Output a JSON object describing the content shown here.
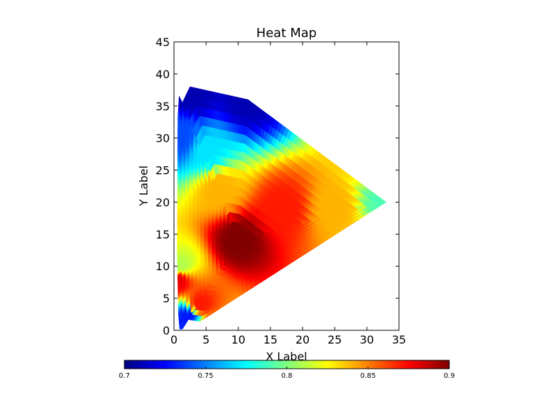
{
  "chart_data": {
    "type": "heatmap",
    "title": "Heat Map",
    "xlabel": "X Label",
    "ylabel": "Y Label",
    "xlim": [
      0,
      35
    ],
    "ylim": [
      0,
      45
    ],
    "x_ticks": [
      "0",
      "5",
      "10",
      "15",
      "20",
      "25",
      "30",
      "35"
    ],
    "y_ticks": [
      "0",
      "5",
      "10",
      "15",
      "20",
      "25",
      "30",
      "35",
      "40",
      "45"
    ],
    "grid": false,
    "colormap": "jet",
    "colorbar": {
      "orientation": "horizontal",
      "placement": "bottom",
      "range": [
        0.7,
        0.9
      ],
      "ticks": [
        "0.7",
        "0.75",
        "0.8",
        "0.85",
        "0.9"
      ]
    },
    "boundary": [
      [
        2.5,
        38
      ],
      [
        11.5,
        36
      ],
      [
        33,
        20
      ],
      [
        5,
        2
      ],
      [
        4,
        1.4
      ],
      [
        1.5,
        1.8
      ],
      [
        1.3,
        0.2
      ],
      [
        0.9,
        0.2
      ],
      [
        0.7,
        2.5
      ],
      [
        0.5,
        12
      ],
      [
        0.6,
        33
      ],
      [
        0.8,
        36.5
      ],
      [
        1.3,
        35.5
      ]
    ],
    "hotspot": {
      "x": 10,
      "y": 14,
      "value": 0.9
    },
    "field_samples": [
      {
        "x": 10,
        "y": 14,
        "value": 0.9
      },
      {
        "x": 17,
        "y": 19,
        "value": 0.87
      },
      {
        "x": 25,
        "y": 19,
        "value": 0.84
      },
      {
        "x": 33,
        "y": 20,
        "value": 0.79
      },
      {
        "x": 7,
        "y": 22,
        "value": 0.84
      },
      {
        "x": 5,
        "y": 28,
        "value": 0.77
      },
      {
        "x": 3,
        "y": 37,
        "value": 0.71
      },
      {
        "x": 11.5,
        "y": 36,
        "value": 0.71
      },
      {
        "x": 4,
        "y": 4,
        "value": 0.87
      },
      {
        "x": 2,
        "y": 2,
        "value": 0.73
      },
      {
        "x": 1,
        "y": 10,
        "value": 0.81
      },
      {
        "x": 0.5,
        "y": 8,
        "value": 0.88
      },
      {
        "x": 1,
        "y": 30,
        "value": 0.74
      }
    ]
  }
}
